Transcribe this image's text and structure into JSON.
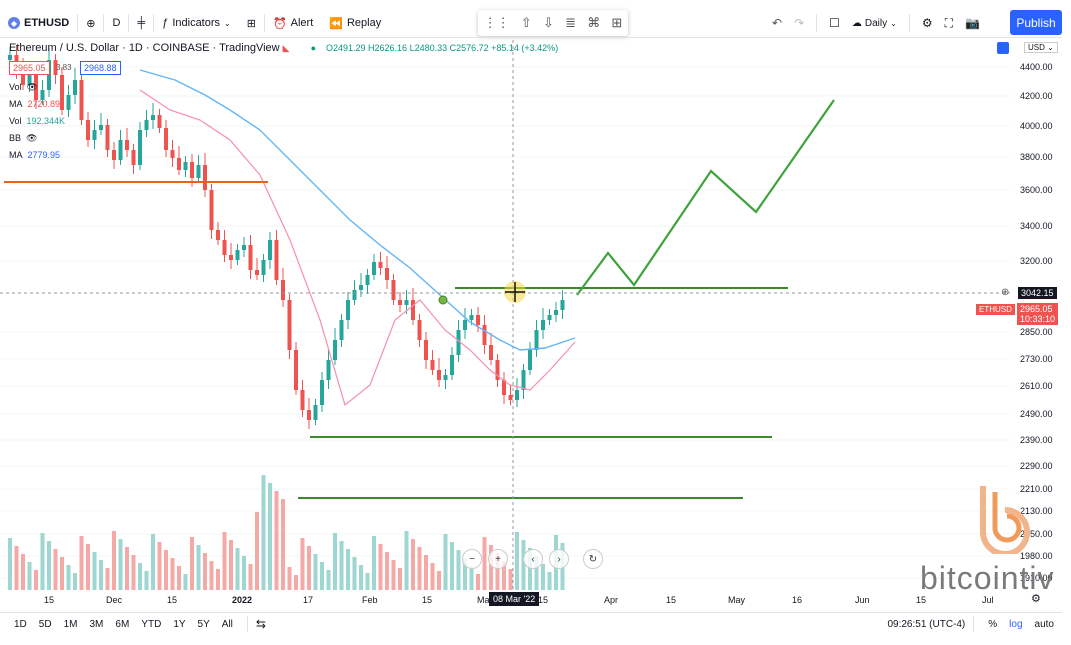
{
  "toolbar": {
    "symbol": "ETHUSD",
    "interval": "D",
    "indicators_label": "Indicators",
    "alert_label": "Alert",
    "replay_label": "Replay",
    "layout_interval": "Daily",
    "publish_label": "Publish"
  },
  "legend": {
    "title": "Ethereum / U.S. Dollar · 1D · COINBASE · TradingView",
    "ohlc": "O2491.29 H2626.16 L2480.33 C2576.72 +85.14 (+3.42%)",
    "bid": "2965.05",
    "spread": "3.83",
    "ask": "2968.88"
  },
  "indicators": [
    {
      "name": "Vol",
      "value": ""
    },
    {
      "name": "MA",
      "value": "2720.89"
    },
    {
      "name": "Vol",
      "value": "192.344K"
    },
    {
      "name": "BB",
      "value": ""
    },
    {
      "name": "MA",
      "value": "2779.95"
    }
  ],
  "price_axis": {
    "currency": "USD",
    "ticks": [
      "4400.00",
      "4200.00",
      "4000.00",
      "3800.00",
      "3600.00",
      "3400.00",
      "3200.00",
      "2850.00",
      "2730.00",
      "2610.00",
      "2490.00",
      "2390.00",
      "2290.00",
      "2210.00",
      "2130.00",
      "2050.00",
      "1980.00",
      "1910.00"
    ],
    "crosshair_price": "3042.15",
    "last_symbol": "ETHUSD",
    "last_price": "2965.05",
    "countdown": "10:33:10"
  },
  "time_axis": {
    "ticks": [
      "15",
      "Dec",
      "15",
      "2022",
      "17",
      "Feb",
      "15",
      "Ma",
      "15",
      "Apr",
      "15",
      "May",
      "16",
      "Jun",
      "15",
      "Jul"
    ],
    "crosshair_date": "08 Mar '22"
  },
  "bottom_bar": {
    "ranges": [
      "1D",
      "5D",
      "1M",
      "3M",
      "6M",
      "YTD",
      "1Y",
      "5Y",
      "All"
    ],
    "clock": "09:26:51 (UTC-4)",
    "percent": "%",
    "log": "log",
    "auto": "auto"
  },
  "watermark": "bitcointiv",
  "colors": {
    "up": "#26a69a",
    "down": "#ef5350",
    "ma_blue": "#64b5f6",
    "ma_red": "#f48fb1",
    "support": "#3a8a2c",
    "orange": "#e8621a",
    "projection": "#3fa23a"
  }
}
